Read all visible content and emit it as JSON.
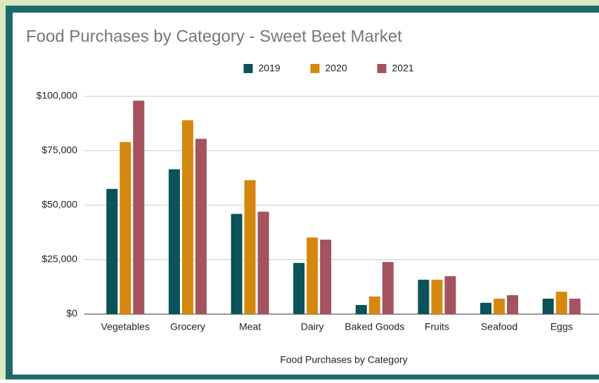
{
  "chart_data": {
    "type": "bar",
    "title": "Food Purchases by Category - Sweet Beet Market",
    "x_label": "Food Purchases by Category",
    "categories": [
      "Vegetables",
      "Grocery",
      "Meat",
      "Dairy",
      "Baked Goods",
      "Fruits",
      "Seafood",
      "Eggs"
    ],
    "series": [
      {
        "name": "2019",
        "color": "#0b5259",
        "values": [
          57500,
          66500,
          46000,
          23500,
          4200,
          15800,
          5200,
          7100
        ]
      },
      {
        "name": "2020",
        "color": "#d4880f",
        "values": [
          79000,
          89000,
          61500,
          35200,
          8100,
          15800,
          7100,
          10300
        ]
      },
      {
        "name": "2021",
        "color": "#a5535e",
        "values": [
          98000,
          80500,
          47000,
          34200,
          23900,
          17400,
          8700,
          7100
        ]
      }
    ],
    "ylim": [
      0,
      100000
    ],
    "yticks": [
      {
        "value": 0,
        "label": "$0"
      },
      {
        "value": 25000,
        "label": "$25,000"
      },
      {
        "value": 50000,
        "label": "$50,000"
      },
      {
        "value": 75000,
        "label": "$75,000"
      },
      {
        "value": 100000,
        "label": "$100,000"
      }
    ],
    "grid": true,
    "legend": "top"
  }
}
